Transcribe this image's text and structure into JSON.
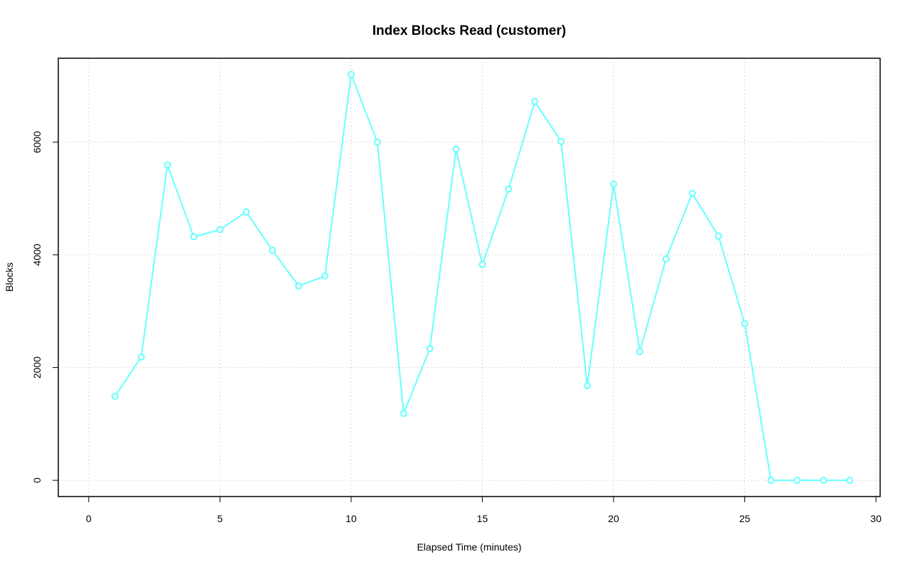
{
  "chart_data": {
    "type": "line",
    "title": "Index Blocks Read (customer)",
    "x_label": "Elapsed Time (minutes)",
    "y_label": "Blocks",
    "x": [
      1,
      2,
      3,
      4,
      5,
      6,
      7,
      8,
      9,
      10,
      11,
      12,
      13,
      14,
      15,
      16,
      17,
      18,
      19,
      20,
      21,
      22,
      23,
      24,
      25,
      26,
      27,
      28,
      29
    ],
    "series": [
      {
        "color": "#66ffff",
        "values": [
          1490,
          2185,
          5596,
          4320,
          4446,
          4762,
          4080,
          3448,
          3625,
          7200,
          6000,
          1187,
          2337,
          5873,
          3827,
          5166,
          6720,
          6012,
          1680,
          5254,
          2286,
          3928,
          5090,
          4332,
          2779,
          0,
          0,
          0,
          0
        ]
      }
    ],
    "xlim": [
      -1.16,
      30.16
    ],
    "ylim": [
      -288,
      7488
    ],
    "xticks": [
      0,
      5,
      10,
      15,
      20,
      25,
      30
    ],
    "yticks": [
      0,
      2000,
      4000,
      6000
    ],
    "grid": true
  }
}
